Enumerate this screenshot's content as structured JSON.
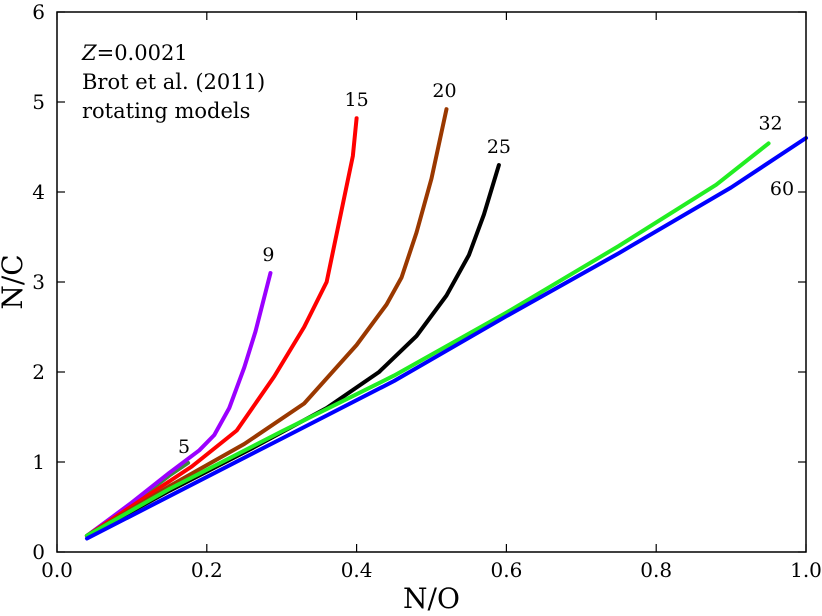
{
  "chart_data": {
    "type": "line",
    "xlabel": "N/O",
    "ylabel": "N/C",
    "xlim": [
      0.0,
      1.0
    ],
    "ylim": [
      0,
      6
    ],
    "x_ticks": [
      0.0,
      0.2,
      0.4,
      0.6,
      0.8,
      1.0
    ],
    "x_tick_labels": [
      "0.0",
      "0.2",
      "0.4",
      "0.6",
      "0.8",
      "1.0"
    ],
    "y_ticks": [
      0,
      1,
      2,
      3,
      4,
      5,
      6
    ],
    "y_tick_labels": [
      "0",
      "1",
      "2",
      "3",
      "4",
      "5",
      "6"
    ],
    "grid": false,
    "annotation": {
      "metallicity_symbol": "Z",
      "metallicity_value": "=0.0021",
      "line2": "Brot et al. (2011)",
      "line3": "rotating models"
    },
    "series": [
      {
        "name": "5",
        "color": "#3c8c3c",
        "x": [
          0.04,
          0.08,
          0.12,
          0.15,
          0.175
        ],
        "y": [
          0.18,
          0.42,
          0.66,
          0.85,
          0.99
        ]
      },
      {
        "name": "9",
        "color": "#9b00ff",
        "x": [
          0.04,
          0.1,
          0.15,
          0.19,
          0.21,
          0.23,
          0.25,
          0.265,
          0.285
        ],
        "y": [
          0.18,
          0.55,
          0.88,
          1.13,
          1.3,
          1.6,
          2.05,
          2.45,
          3.1
        ]
      },
      {
        "name": "15",
        "color": "#ff0000",
        "x": [
          0.04,
          0.12,
          0.18,
          0.24,
          0.29,
          0.33,
          0.36,
          0.38,
          0.395,
          0.4
        ],
        "y": [
          0.18,
          0.62,
          0.95,
          1.35,
          1.95,
          2.5,
          3.0,
          3.8,
          4.4,
          4.82
        ]
      },
      {
        "name": "20",
        "color": "#9a3800",
        "x": [
          0.04,
          0.15,
          0.25,
          0.33,
          0.4,
          0.44,
          0.46,
          0.48,
          0.5,
          0.52
        ],
        "y": [
          0.18,
          0.73,
          1.2,
          1.65,
          2.3,
          2.75,
          3.05,
          3.55,
          4.15,
          4.92
        ]
      },
      {
        "name": "25",
        "color": "#000000",
        "x": [
          0.04,
          0.15,
          0.26,
          0.36,
          0.43,
          0.48,
          0.52,
          0.55,
          0.57,
          0.59
        ],
        "y": [
          0.18,
          0.68,
          1.15,
          1.6,
          2.0,
          2.4,
          2.85,
          3.3,
          3.75,
          4.3
        ]
      },
      {
        "name": "32",
        "color": "#22ee22",
        "x": [
          0.04,
          0.15,
          0.3,
          0.45,
          0.6,
          0.75,
          0.88,
          0.95
        ],
        "y": [
          0.18,
          0.7,
          1.34,
          1.96,
          2.66,
          3.4,
          4.08,
          4.54
        ]
      },
      {
        "name": "60",
        "color": "#0000ff",
        "x": [
          0.04,
          0.15,
          0.3,
          0.45,
          0.6,
          0.75,
          0.9,
          1.0
        ],
        "y": [
          0.15,
          0.62,
          1.26,
          1.9,
          2.62,
          3.32,
          4.05,
          4.6
        ]
      }
    ]
  }
}
